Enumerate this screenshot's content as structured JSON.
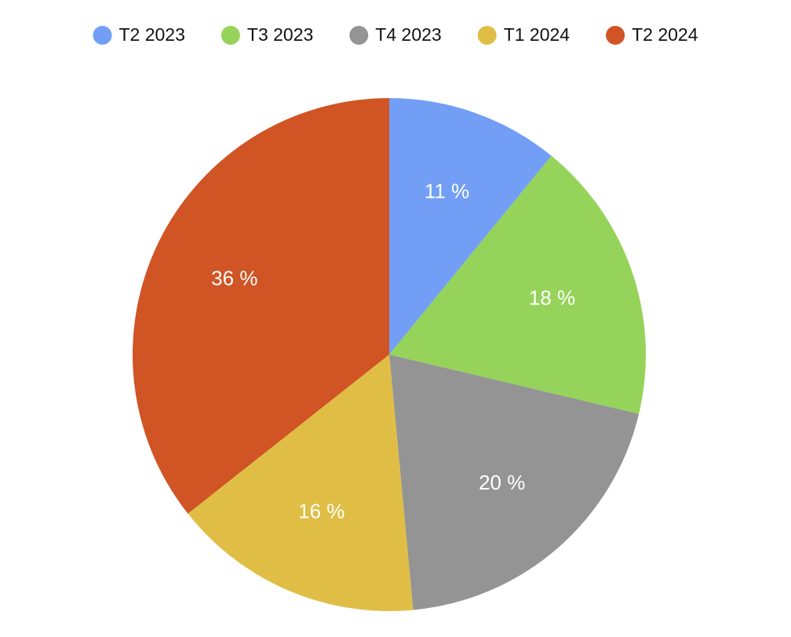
{
  "chart_data": {
    "type": "pie",
    "categories": [
      "T2 2023",
      "T3 2023",
      "T4 2023",
      "T1 2024",
      "T2 2024"
    ],
    "values": [
      11,
      18,
      20,
      16,
      36
    ],
    "value_labels": [
      "11 %",
      "18 %",
      "20 %",
      "16 %",
      "36 %"
    ],
    "colors": [
      "#729ef5",
      "#96d35a",
      "#949494",
      "#e0be46",
      "#d05424"
    ],
    "legend": "top"
  }
}
